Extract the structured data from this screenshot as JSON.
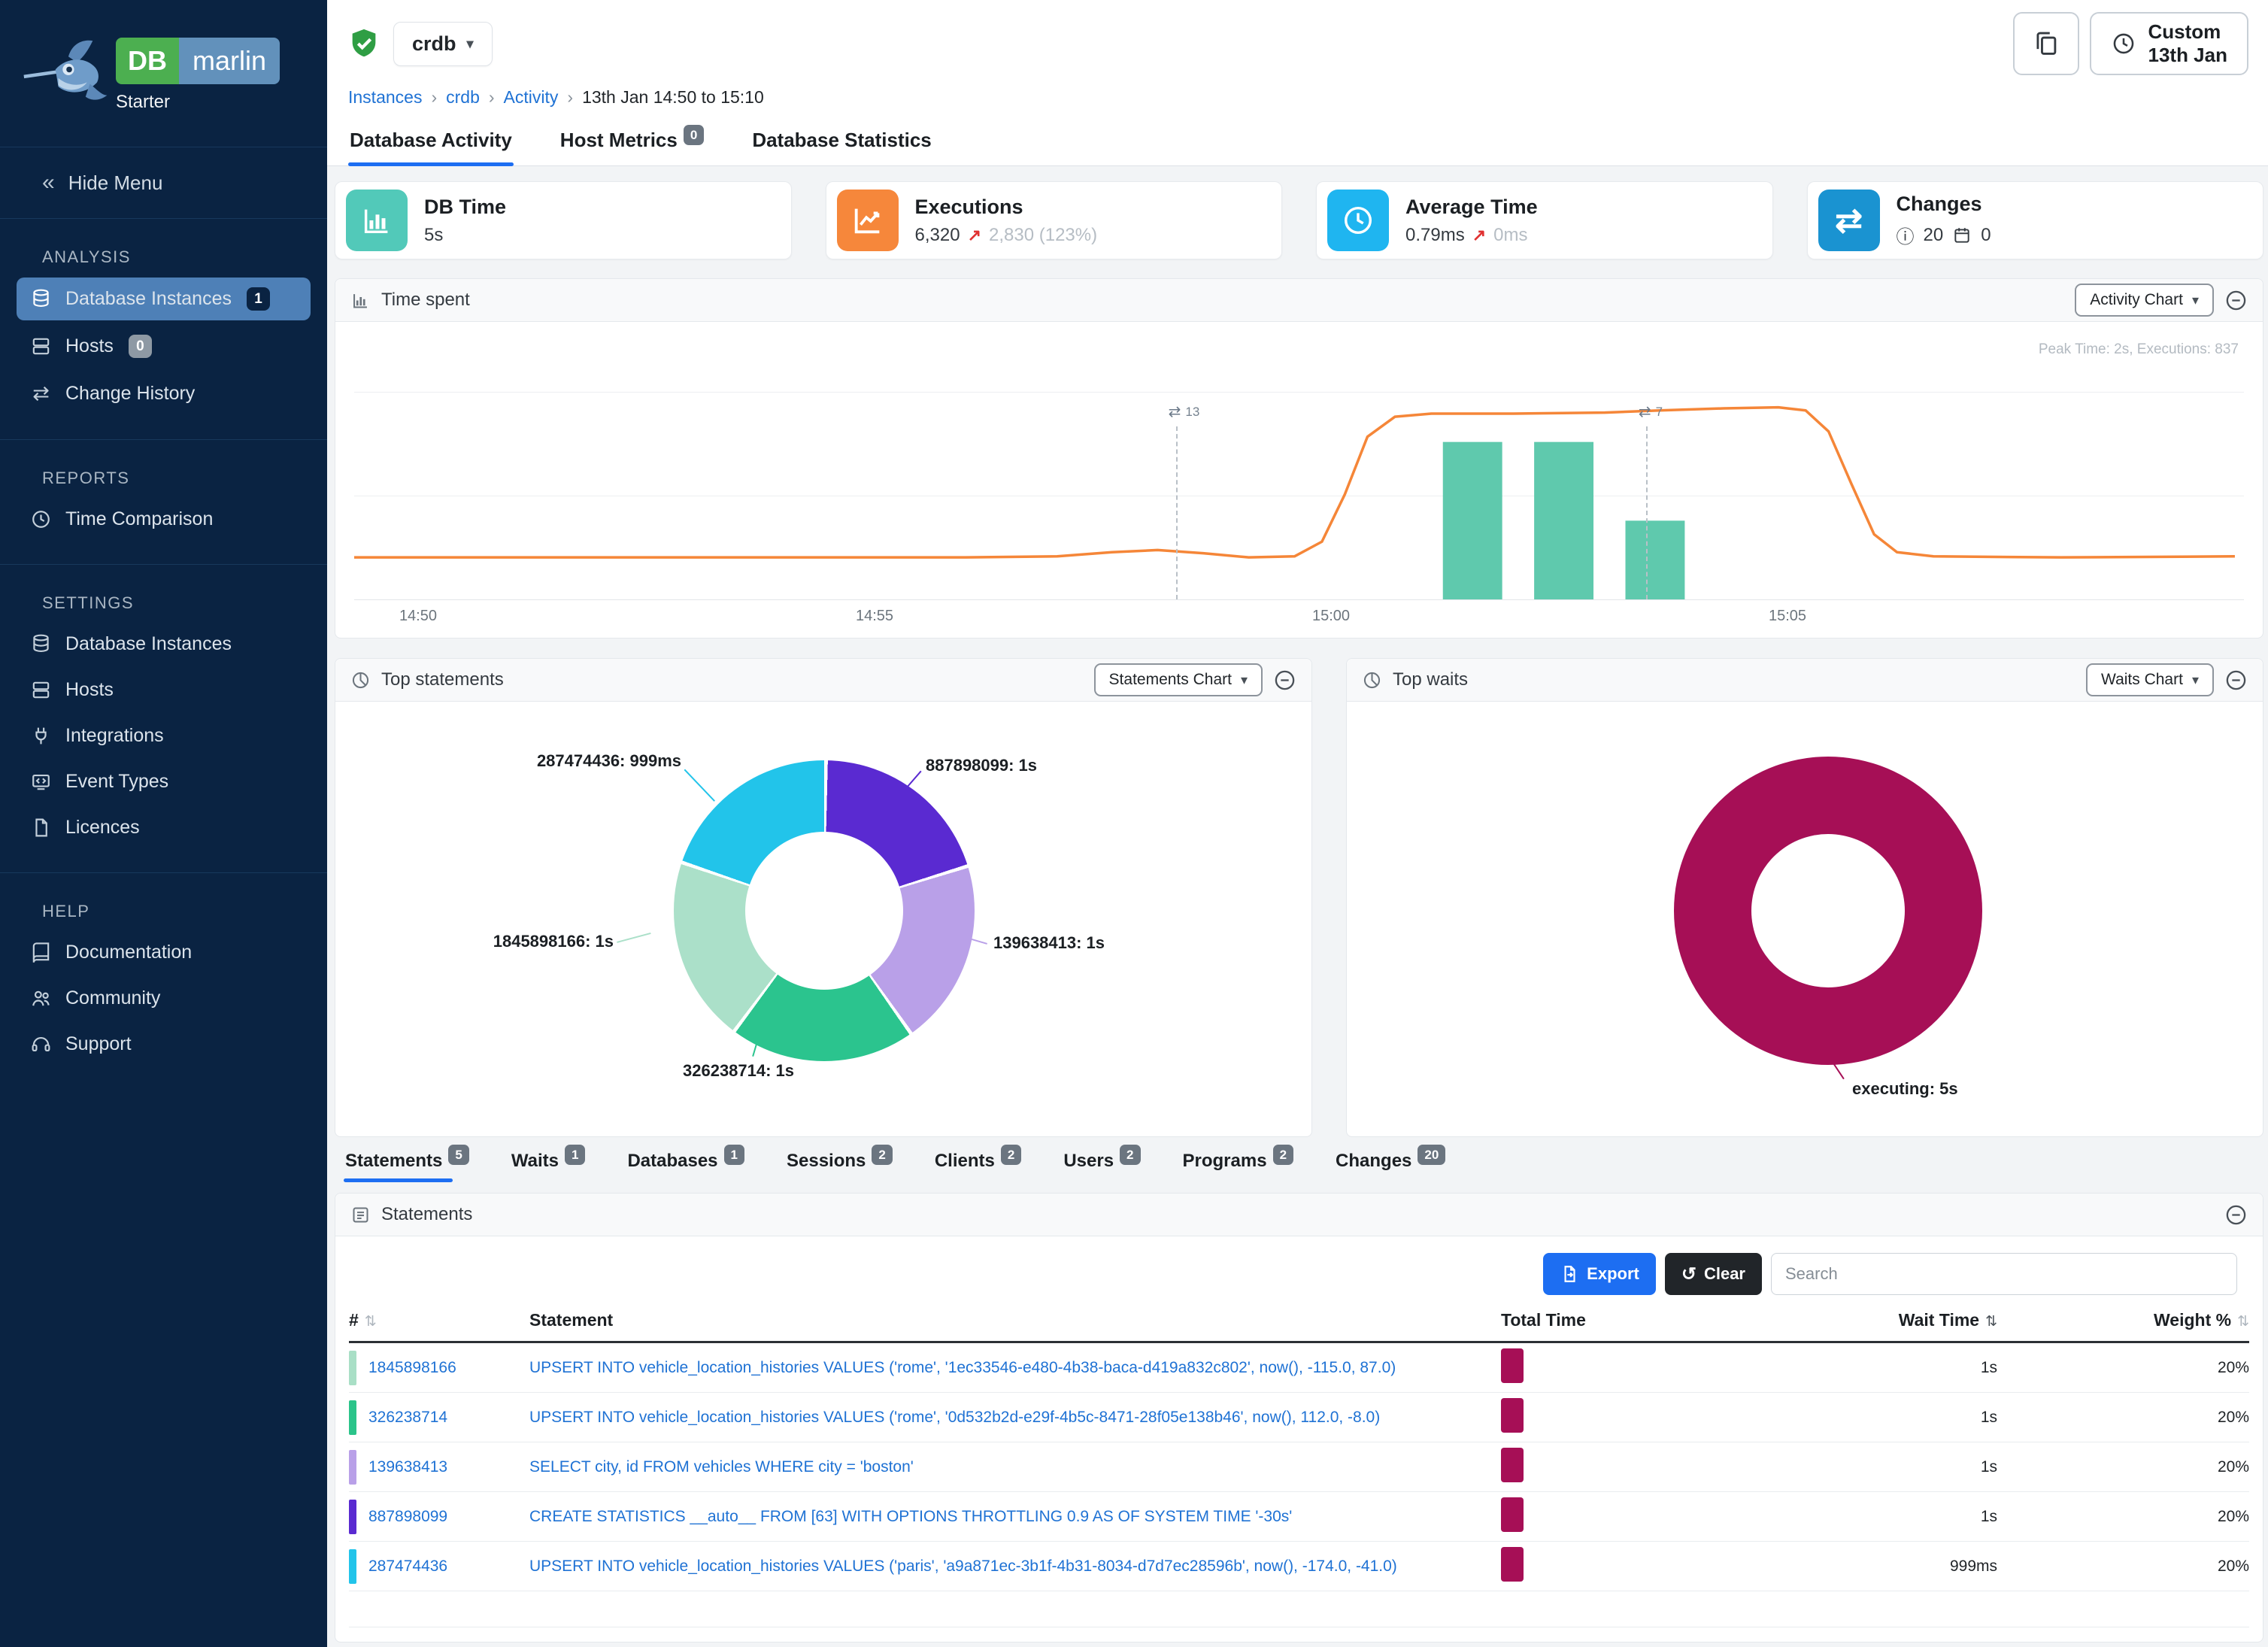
{
  "icons": {
    "collapse_left": "«",
    "chevron_down": "▾",
    "swap": "⇄",
    "info": "ⓘ",
    "undo": "↺",
    "arrow_up_right": "↗",
    "breadcrumb_sep": "›",
    "sort": "⇅"
  },
  "colors": {
    "wait_bar": "#a60f56",
    "accent_blue": "#1d6ef2"
  },
  "sidebar": {
    "brand": {
      "db": "DB",
      "marlin": "marlin",
      "tier": "Starter"
    },
    "hide_menu": "Hide Menu",
    "sections": [
      {
        "title": "ANALYSIS",
        "items": [
          {
            "label": "Database Instances",
            "badge": "1"
          },
          {
            "label": "Hosts",
            "badge": "0"
          },
          {
            "label": "Change History"
          }
        ]
      },
      {
        "title": "REPORTS",
        "items": [
          {
            "label": "Time Comparison"
          }
        ]
      },
      {
        "title": "SETTINGS",
        "items": [
          {
            "label": "Database Instances"
          },
          {
            "label": "Hosts"
          },
          {
            "label": "Integrations"
          },
          {
            "label": "Event Types"
          },
          {
            "label": "Licences"
          }
        ]
      },
      {
        "title": "HELP",
        "items": [
          {
            "label": "Documentation"
          },
          {
            "label": "Community"
          },
          {
            "label": "Support"
          }
        ]
      }
    ]
  },
  "header": {
    "instance": "crdb",
    "breadcrumb": [
      "Instances",
      "crdb",
      "Activity",
      "13th Jan 14:50 to 15:10"
    ],
    "time_button": {
      "line1": "Custom",
      "line2": "13th Jan"
    }
  },
  "tabs": [
    {
      "label": "Database Activity",
      "active": true
    },
    {
      "label": "Host Metrics",
      "badge": "0"
    },
    {
      "label": "Database Statistics"
    }
  ],
  "cards": [
    {
      "title": "DB Time",
      "value": "5s",
      "color": "#52c9b9"
    },
    {
      "title": "Executions",
      "value": "6,320",
      "delta": "2,830 (123%)",
      "color": "#f6873b"
    },
    {
      "title": "Average Time",
      "value": "0.79ms",
      "delta": "0ms",
      "color": "#1fb5f0"
    },
    {
      "title": "Changes",
      "value": "20",
      "value2": "0",
      "color": "#1a93d1"
    }
  ],
  "time_spent_panel": {
    "title": "Time spent",
    "chart_button": "Activity Chart"
  },
  "top_statements_panel": {
    "title": "Top statements",
    "chart_button": "Statements Chart"
  },
  "top_waits_panel": {
    "title": "Top waits",
    "chart_button": "Waits Chart"
  },
  "detail_tabs": [
    {
      "label": "Statements",
      "badge": "5",
      "active": true
    },
    {
      "label": "Waits",
      "badge": "1"
    },
    {
      "label": "Databases",
      "badge": "1"
    },
    {
      "label": "Sessions",
      "badge": "2"
    },
    {
      "label": "Clients",
      "badge": "2"
    },
    {
      "label": "Users",
      "badge": "2"
    },
    {
      "label": "Programs",
      "badge": "2"
    },
    {
      "label": "Changes",
      "badge": "20"
    }
  ],
  "statements_panel": {
    "title": "Statements",
    "export_label": "Export",
    "clear_label": "Clear",
    "search_placeholder": "Search",
    "columns": [
      {
        "label": "#",
        "sort": "unsorted"
      },
      {
        "label": "Statement"
      },
      {
        "label": "Total Time"
      },
      {
        "label": "Wait Time",
        "sort": "sorted"
      },
      {
        "label": "Weight %",
        "sort": "unsorted"
      }
    ],
    "rows": [
      {
        "id": "1845898166",
        "color": "#a9dfc6",
        "statement": "UPSERT INTO vehicle_location_histories VALUES ('rome', '1ec33546-e480-4b38-baca-d419a832c802', now(), -115.0, 87.0)",
        "wait_time": "1s",
        "weight": "20%"
      },
      {
        "id": "326238714",
        "color": "#2bc48a",
        "statement": "UPSERT INTO vehicle_location_histories VALUES ('rome', '0d532b2d-e29f-4b5c-8471-28f05e138b46', now(), 112.0, -8.0)",
        "wait_time": "1s",
        "weight": "20%"
      },
      {
        "id": "139638413",
        "color": "#b9a0e8",
        "statement": "SELECT city, id FROM vehicles WHERE city = 'boston'",
        "wait_time": "1s",
        "weight": "20%"
      },
      {
        "id": "887898099",
        "color": "#5a2ad1",
        "statement": "CREATE STATISTICS __auto__ FROM [63] WITH OPTIONS THROTTLING 0.9 AS OF SYSTEM TIME '-30s'",
        "wait_time": "1s",
        "weight": "20%"
      },
      {
        "id": "287474436",
        "color": "#22c4ea",
        "statement": "UPSERT INTO vehicle_location_histories VALUES ('paris', 'a9a871ec-3b1f-4b31-8034-d7d7ec28596b', now(), -174.0, -41.0)",
        "wait_time": "999ms",
        "weight": "20%"
      }
    ]
  },
  "chart_data": [
    {
      "type": "line",
      "title": "Time spent",
      "note": "Peak Time: 2s, Executions: 837",
      "x_unit": "minutes after 14:50",
      "y_unit": "seconds of DB time",
      "x_range": [
        -0.7,
        20.0
      ],
      "y_range": [
        0,
        2.25
      ],
      "x_ticks": [
        {
          "m": 0,
          "label": "14:50"
        },
        {
          "m": 5,
          "label": "14:55"
        },
        {
          "m": 10,
          "label": "15:00"
        },
        {
          "m": 15,
          "label": "15:05"
        }
      ],
      "line": {
        "name": "Activity",
        "color": "#f58638",
        "points": [
          [
            -0.7,
            0.4
          ],
          [
            3,
            0.4
          ],
          [
            6,
            0.4
          ],
          [
            7.0,
            0.41
          ],
          [
            7.6,
            0.45
          ],
          [
            8.1,
            0.47
          ],
          [
            8.6,
            0.44
          ],
          [
            9.1,
            0.4
          ],
          [
            9.6,
            0.41
          ],
          [
            9.9,
            0.55
          ],
          [
            10.15,
            1.0
          ],
          [
            10.4,
            1.55
          ],
          [
            10.7,
            1.74
          ],
          [
            11.1,
            1.77
          ],
          [
            12,
            1.77
          ],
          [
            13,
            1.78
          ],
          [
            13.6,
            1.8
          ],
          [
            14.3,
            1.82
          ],
          [
            14.9,
            1.83
          ],
          [
            15.2,
            1.8
          ],
          [
            15.45,
            1.6
          ],
          [
            15.7,
            1.1
          ],
          [
            15.95,
            0.62
          ],
          [
            16.2,
            0.45
          ],
          [
            16.6,
            0.41
          ],
          [
            18,
            0.4
          ],
          [
            19.9,
            0.41
          ]
        ]
      },
      "bars": {
        "name": "Executions",
        "color": "#5fc9ad",
        "width_min": 0.65,
        "points": [
          [
            11.55,
            1.5
          ],
          [
            12.55,
            1.5
          ],
          [
            13.55,
            0.75
          ]
        ]
      },
      "annotations": [
        {
          "m": 8.3,
          "label": "13"
        },
        {
          "m": 13.45,
          "label": "7"
        }
      ]
    },
    {
      "type": "donut",
      "title": "Top statements",
      "slices": [
        {
          "label": "887898099: 1s",
          "value": 1.0,
          "color": "#5a2ad1"
        },
        {
          "label": "139638413: 1s",
          "value": 1.0,
          "color": "#b9a0e8"
        },
        {
          "label": "326238714: 1s",
          "value": 1.0,
          "color": "#2bc48e"
        },
        {
          "label": "1845898166: 1s",
          "value": 1.0,
          "color": "#abe0c9"
        },
        {
          "label": "287474436: 999ms",
          "value": 0.999,
          "color": "#22c4ea"
        }
      ]
    },
    {
      "type": "donut",
      "title": "Top waits",
      "slices": [
        {
          "label": "executing: 5s",
          "value": 5,
          "color": "#a60f56"
        }
      ]
    }
  ]
}
